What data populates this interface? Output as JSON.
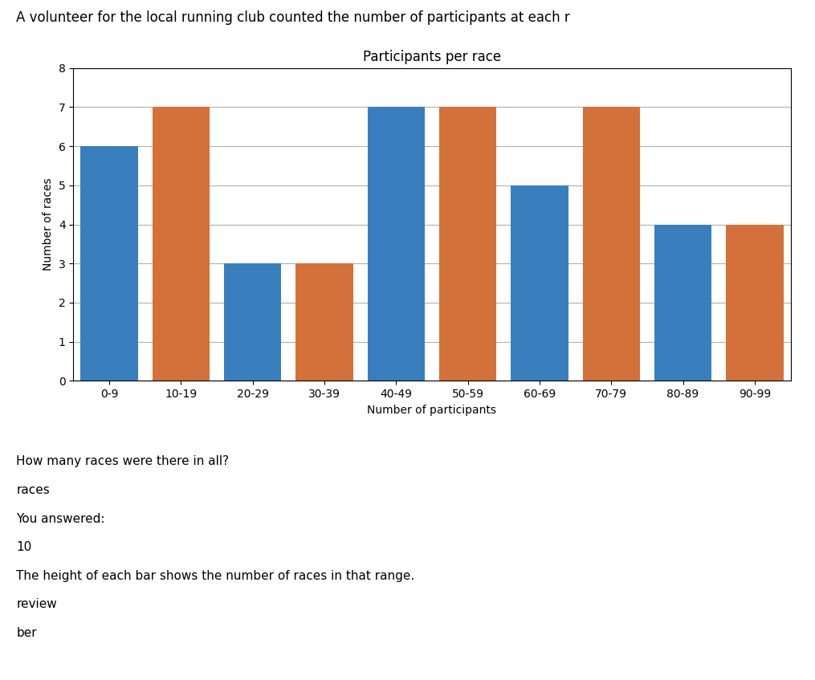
{
  "chart_data": {
    "type": "bar",
    "title": "Participants per race",
    "xlabel": "Number of participants",
    "ylabel": "Number of races",
    "categories": [
      "0-9",
      "10-19",
      "20-29",
      "30-39",
      "40-49",
      "50-59",
      "60-69",
      "70-79",
      "80-89",
      "90-99"
    ],
    "values": [
      6,
      7,
      3,
      3,
      7,
      7,
      5,
      7,
      4,
      4
    ],
    "colors": [
      "#3a7fbd",
      "#d4713a",
      "#3a7fbd",
      "#d4713a",
      "#3a7fbd",
      "#d4713a",
      "#3a7fbd",
      "#d4713a",
      "#3a7fbd",
      "#d4713a"
    ],
    "ylim": [
      0,
      8
    ],
    "yticks": [
      0,
      1,
      2,
      3,
      4,
      5,
      6,
      7,
      8
    ],
    "grid": true,
    "annotations": [
      "A volunteer for the local running club counted the number of participants at each r",
      "How many races were there in all?",
      "races",
      "You answered:",
      "10",
      "The height of each bar shows the number of races in that range.",
      "review",
      "ber"
    ]
  }
}
